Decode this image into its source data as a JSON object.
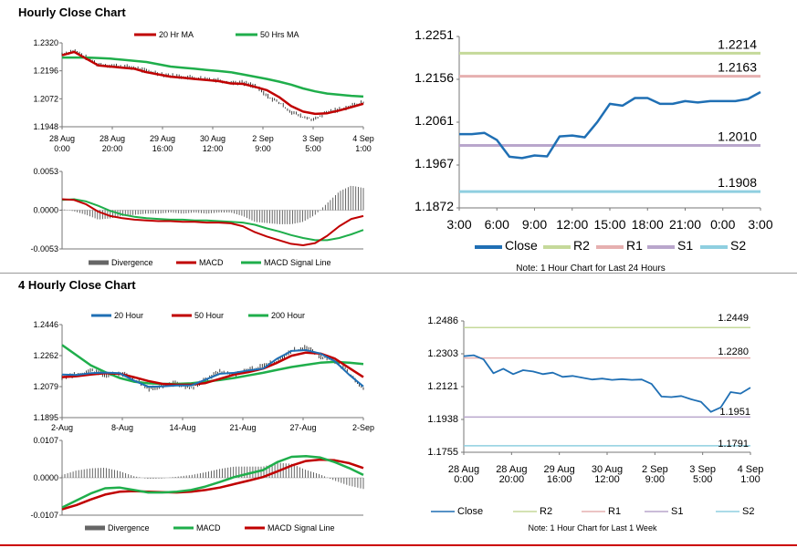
{
  "sections": {
    "hourly_title": "Hourly Close Chart",
    "four_hourly_title": "4 Hourly Close Chart"
  },
  "colors": {
    "red": "#c00000",
    "green": "#1fae4b",
    "blue": "#1f6fb4",
    "gray": "#666666",
    "r1": "#e6b0b0",
    "r2": "#c5d99a",
    "s1": "#b9a6cc",
    "s2": "#8fcfe0"
  },
  "chart_data": [
    {
      "id": "hourly_price",
      "type": "line",
      "legend": [
        "20 Hr MA",
        "50 Hrs MA"
      ],
      "yticks": [
        "1.2320",
        "1.2196",
        "1.2072",
        "1.1948"
      ],
      "ylim": [
        1.1948,
        1.232
      ],
      "xticks": [
        [
          "28 Aug",
          "0:00"
        ],
        [
          "28 Aug",
          "20:00"
        ],
        [
          "29 Aug",
          "16:00"
        ],
        [
          "30 Aug",
          "12:00"
        ],
        [
          "2 Sep",
          "9:00"
        ],
        [
          "3 Sep",
          "5:00"
        ],
        [
          "4 Sep",
          "1:00"
        ]
      ],
      "ma20": [
        1.2265,
        1.228,
        1.225,
        1.222,
        1.2215,
        1.221,
        1.2205,
        1.219,
        1.218,
        1.217,
        1.2165,
        1.216,
        1.2155,
        1.215,
        1.214,
        1.2138,
        1.2125,
        1.211,
        1.208,
        1.204,
        1.2015,
        1.2005,
        1.2008,
        1.202,
        1.2035,
        1.205
      ],
      "ma50": [
        1.2255,
        1.2255,
        1.2255,
        1.2253,
        1.225,
        1.2245,
        1.224,
        1.2235,
        1.2225,
        1.2215,
        1.221,
        1.2205,
        1.22,
        1.2195,
        1.219,
        1.218,
        1.217,
        1.216,
        1.2148,
        1.2135,
        1.2118,
        1.2105,
        1.2095,
        1.209,
        1.2085,
        1.2082
      ]
    },
    {
      "id": "hourly_macd",
      "type": "bar",
      "legend": [
        "Divergence",
        "MACD",
        "MACD Signal Line"
      ],
      "yticks": [
        "0.0053",
        "0.0000",
        "-0.0053"
      ],
      "ylim": [
        -0.0053,
        0.0053
      ],
      "macd": [
        0.0015,
        0.0014,
        0.0008,
        -0.0002,
        -0.0008,
        -0.0011,
        -0.0013,
        -0.0014,
        -0.0015,
        -0.0015,
        -0.0016,
        -0.0016,
        -0.0017,
        -0.0017,
        -0.0018,
        -0.0022,
        -0.003,
        -0.0036,
        -0.0041,
        -0.0046,
        -0.0048,
        -0.0045,
        -0.0035,
        -0.0022,
        -0.0012,
        -0.0008
      ],
      "signal": [
        0.0014,
        0.0015,
        0.0012,
        0.0006,
        -0.0001,
        -0.0006,
        -0.0009,
        -0.0011,
        -0.0012,
        -0.0013,
        -0.0013,
        -0.0014,
        -0.0014,
        -0.0015,
        -0.0016,
        -0.0017,
        -0.002,
        -0.0025,
        -0.0029,
        -0.0034,
        -0.0038,
        -0.0041,
        -0.0041,
        -0.0038,
        -0.0033,
        -0.0027
      ]
    },
    {
      "id": "hourly_24h",
      "type": "line",
      "yticks": [
        "1.2251",
        "1.2156",
        "1.2061",
        "1.1967",
        "1.1872"
      ],
      "ylim": [
        1.1872,
        1.2251
      ],
      "xticks": [
        "3:00",
        "6:00",
        "9:00",
        "12:00",
        "15:00",
        "18:00",
        "21:00",
        "0:00",
        "3:00"
      ],
      "close": [
        1.2035,
        1.2035,
        1.2038,
        1.2022,
        1.1985,
        1.1982,
        1.1988,
        1.1986,
        1.203,
        1.2032,
        1.2028,
        1.2062,
        1.2102,
        1.2098,
        1.2115,
        1.2115,
        1.2102,
        1.2102,
        1.2108,
        1.2105,
        1.2108,
        1.2108,
        1.2108,
        1.2113,
        1.2128
      ],
      "levels": {
        "R2": 1.2214,
        "R1": 1.2163,
        "S1": 1.201,
        "S2": 1.1908
      },
      "level_labels": {
        "R2": "1.2214",
        "R1": "1.2163",
        "S1": "1.2010",
        "S2": "1.1908"
      },
      "legend": [
        "Close",
        "R2",
        "R1",
        "S1",
        "S2"
      ],
      "note": "Note: 1 Hour Chart for Last 24 Hours"
    },
    {
      "id": "four_hourly_price",
      "type": "line",
      "legend": [
        "20 Hour",
        "50 Hour",
        "200 Hour"
      ],
      "yticks": [
        "1.2446",
        "1.2262",
        "1.2079",
        "1.1895"
      ],
      "ylim": [
        1.1895,
        1.2446
      ],
      "xticks": [
        "2-Aug",
        "8-Aug",
        "14-Aug",
        "21-Aug",
        "27-Aug",
        "2-Sep"
      ],
      "h20": [
        1.215,
        1.2148,
        1.2158,
        1.2162,
        1.2158,
        1.2115,
        1.2078,
        1.208,
        1.2085,
        1.2085,
        1.212,
        1.2155,
        1.216,
        1.2175,
        1.2185,
        1.2245,
        1.229,
        1.2295,
        1.2275,
        1.223,
        1.215,
        1.208
      ],
      "h50": [
        1.2135,
        1.214,
        1.215,
        1.2158,
        1.2155,
        1.2135,
        1.2112,
        1.2095,
        1.209,
        1.209,
        1.21,
        1.2125,
        1.215,
        1.2165,
        1.2185,
        1.222,
        1.2262,
        1.228,
        1.2275,
        1.2245,
        1.219,
        1.2135
      ],
      "h200": [
        1.2325,
        1.2265,
        1.2205,
        1.2165,
        1.213,
        1.2108,
        1.2098,
        1.2095,
        1.2095,
        1.2098,
        1.2108,
        1.2118,
        1.213,
        1.2145,
        1.216,
        1.2178,
        1.2195,
        1.2208,
        1.222,
        1.2225,
        1.222,
        1.2212
      ]
    },
    {
      "id": "four_hourly_macd",
      "type": "bar",
      "legend": [
        "Divergence",
        "MACD",
        "MACD Signal Line"
      ],
      "yticks": [
        "0.0107",
        "0.0000",
        "-0.0107"
      ],
      "ylim": [
        -0.0107,
        0.0107
      ],
      "macd": [
        -0.0085,
        -0.0065,
        -0.0045,
        -0.003,
        -0.0028,
        -0.0035,
        -0.0042,
        -0.0042,
        -0.004,
        -0.0035,
        -0.0025,
        -0.0012,
        0.0002,
        0.0012,
        0.0022,
        0.0045,
        0.006,
        0.0062,
        0.0058,
        0.0045,
        0.0028,
        0.0008
      ],
      "signal": [
        -0.009,
        -0.0078,
        -0.0062,
        -0.0048,
        -0.004,
        -0.0038,
        -0.004,
        -0.0041,
        -0.0042,
        -0.004,
        -0.0035,
        -0.0028,
        -0.0018,
        -0.0008,
        0.0002,
        0.0018,
        0.0035,
        0.0048,
        0.0052,
        0.005,
        0.0042,
        0.0028
      ]
    },
    {
      "id": "hourly_week",
      "type": "line",
      "yticks": [
        "1.2486",
        "1.2303",
        "1.2121",
        "1.1938",
        "1.1755"
      ],
      "ylim": [
        1.1755,
        1.2486
      ],
      "xticks": [
        [
          "28 Aug",
          "0:00"
        ],
        [
          "28 Aug",
          "20:00"
        ],
        [
          "29 Aug",
          "16:00"
        ],
        [
          "30 Aug",
          "12:00"
        ],
        [
          "2 Sep",
          "9:00"
        ],
        [
          "3 Sep",
          "5:00"
        ],
        [
          "4 Sep",
          "1:00"
        ]
      ],
      "close": [
        1.229,
        1.2295,
        1.2272,
        1.2195,
        1.222,
        1.219,
        1.2212,
        1.2205,
        1.219,
        1.2198,
        1.2175,
        1.218,
        1.217,
        1.216,
        1.2165,
        1.2158,
        1.2162,
        1.2158,
        1.216,
        1.2135,
        1.2065,
        1.2062,
        1.2068,
        1.205,
        1.2035,
        1.198,
        1.2005,
        1.209,
        1.2082,
        1.2115
      ],
      "levels": {
        "R2": 1.2449,
        "R1": 1.228,
        "S1": 1.1951,
        "S2": 1.1791
      },
      "level_labels": {
        "R2": "1.2449",
        "R1": "1.2280",
        "S1": "1.1951",
        "S2": "1.1791"
      },
      "legend": [
        "Close",
        "R2",
        "R1",
        "S1",
        "S2"
      ],
      "note": "Note: 1 Hour Chart for Last 1 Week"
    }
  ]
}
